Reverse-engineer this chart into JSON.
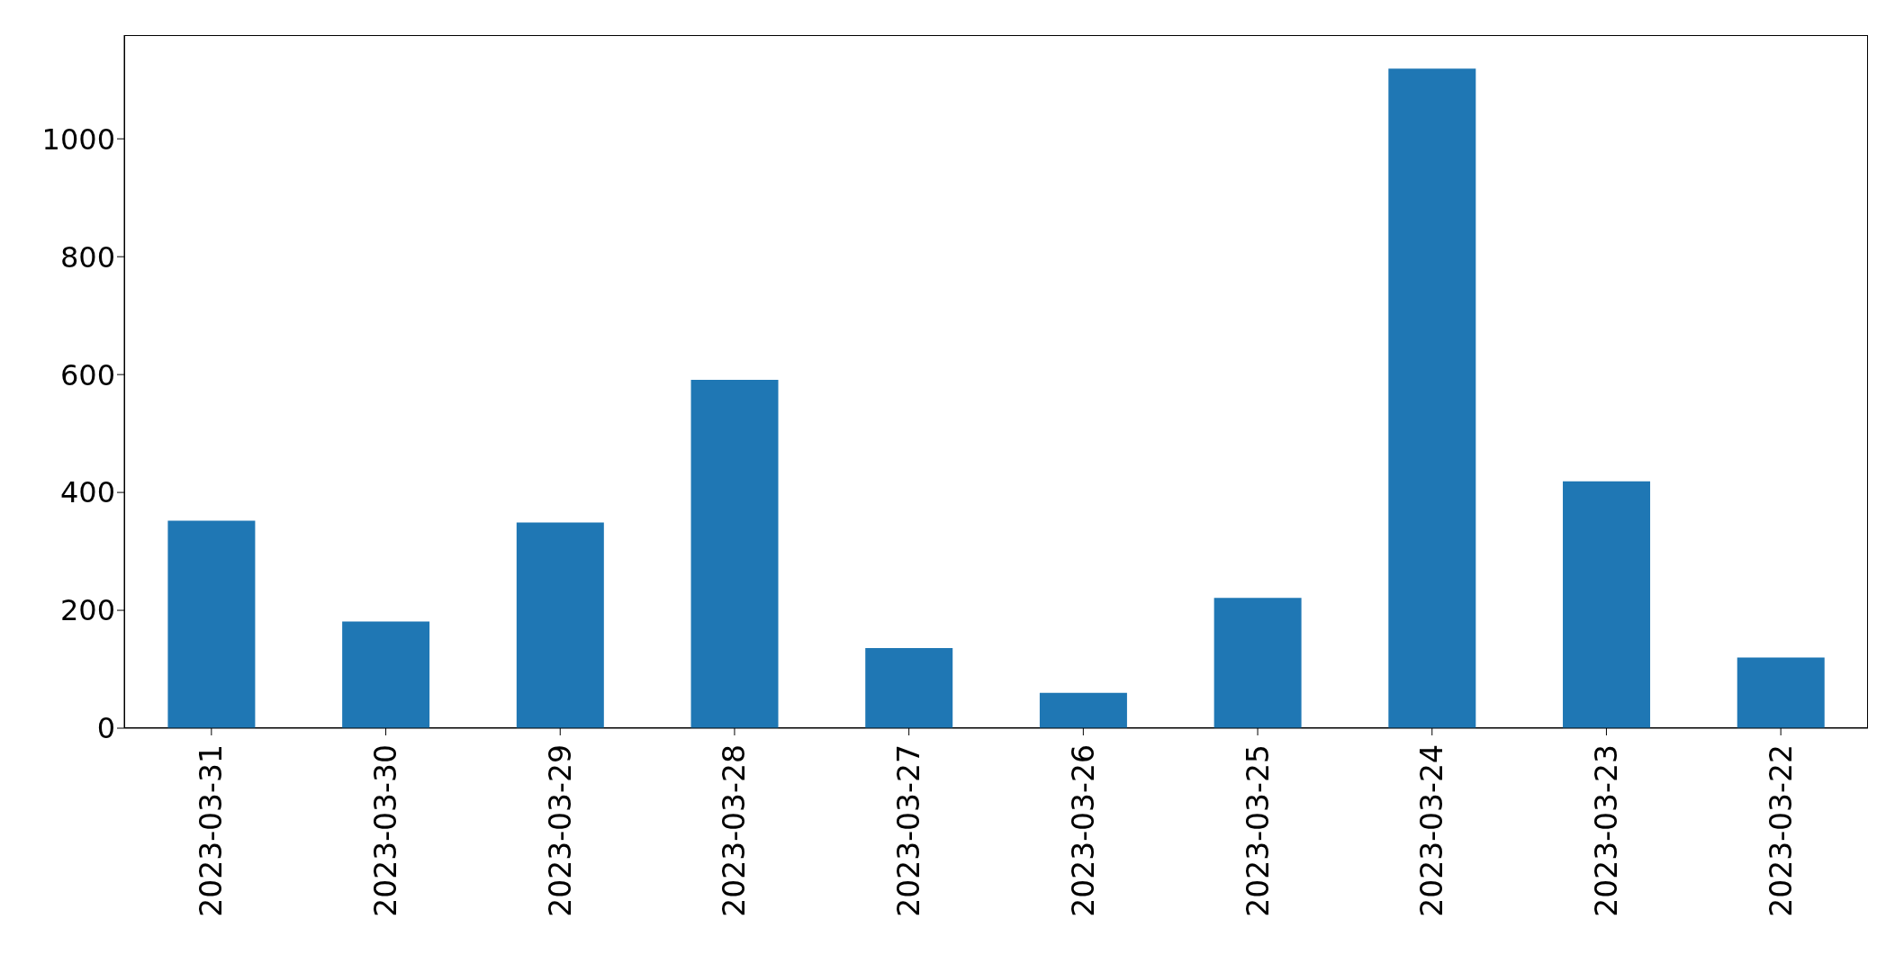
{
  "chart_data": {
    "type": "bar",
    "categories": [
      "2023-03-31",
      "2023-03-30",
      "2023-03-29",
      "2023-03-28",
      "2023-03-27",
      "2023-03-26",
      "2023-03-25",
      "2023-03-24",
      "2023-03-23",
      "2023-03-22"
    ],
    "values": [
      352,
      181,
      349,
      591,
      136,
      60,
      221,
      1119,
      419,
      120
    ],
    "color": "#1f77b4",
    "ylim": [
      0,
      1176
    ],
    "yticks": [
      0,
      200,
      400,
      600,
      800,
      1000
    ],
    "grid": false
  }
}
